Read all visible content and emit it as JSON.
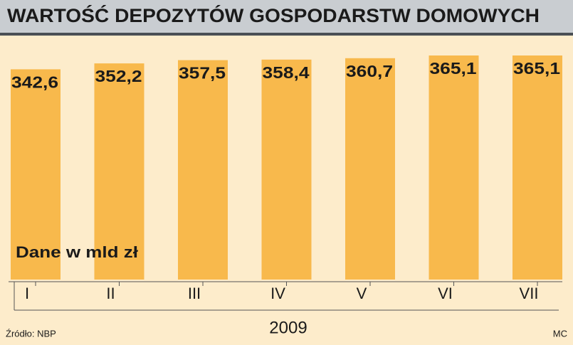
{
  "chart_data": {
    "type": "bar",
    "title": "WARTOŚĆ DEPOZYTÓW GOSPODARSTW DOMOWYCH",
    "unit_note": "Dane w mld zł",
    "x_label": "2009",
    "source": "Źródło: NBP",
    "credit": "MC",
    "categories": [
      "I",
      "II",
      "III",
      "IV",
      "V",
      "VI",
      "VII"
    ],
    "values": [
      342.6,
      352.2,
      357.5,
      358.4,
      360.7,
      365.1,
      365.1
    ],
    "value_labels": [
      "342,6",
      "352,2",
      "357,5",
      "358,4",
      "360,7",
      "365,1",
      "365,1"
    ],
    "color": "#f8b94c"
  }
}
